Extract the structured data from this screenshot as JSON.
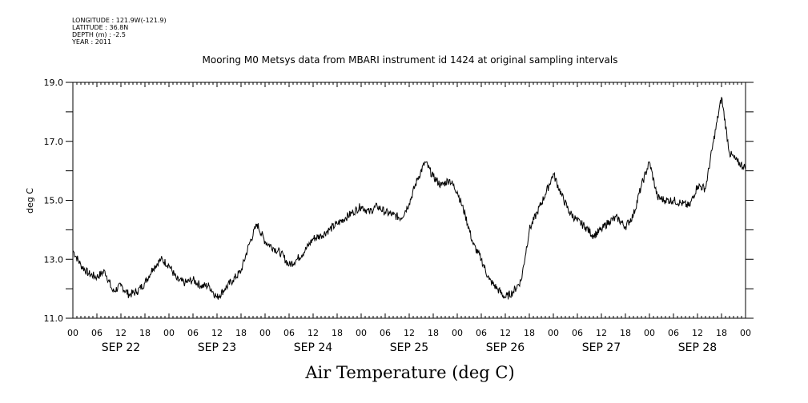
{
  "header": {
    "longitude": "LONGITUDE : 121.9W(-121.9)",
    "latitude": "LATITUDE : 36.8N",
    "depth": "DEPTH (m) : -2.5",
    "year": "YEAR : 2011"
  },
  "chart_data": {
    "type": "line",
    "title": "Mooring M0 Metsys data from MBARI instrument id 1424 at original sampling intervals",
    "xlabel": "Air Temperature (deg C)",
    "ylabel": "deg C",
    "ylim": [
      11.0,
      19.0
    ],
    "yticks": [
      "11.0",
      "13.0",
      "15.0",
      "17.0",
      "19.0"
    ],
    "xlim_hours": [
      0,
      168
    ],
    "hour_tick_labels": [
      "00",
      "06",
      "12",
      "18",
      "00",
      "06",
      "12",
      "18",
      "00",
      "06",
      "12",
      "18",
      "00",
      "06",
      "12",
      "18",
      "00",
      "06",
      "12",
      "18",
      "00",
      "06",
      "12",
      "18",
      "00",
      "06",
      "12",
      "18",
      "00"
    ],
    "day_labels": [
      "SEP 22",
      "SEP 23",
      "SEP 24",
      "SEP 25",
      "SEP 26",
      "SEP 27",
      "SEP 28"
    ],
    "grid": false,
    "series": [
      {
        "x": [
          "SEP 22 00:00",
          "SEP 22 02:00",
          "SEP 22 04:00",
          "SEP 22 06:00",
          "SEP 22 08:00",
          "SEP 22 10:00",
          "SEP 22 12:00",
          "SEP 22 14:00",
          "SEP 22 16:00",
          "SEP 22 18:00",
          "SEP 22 20:00",
          "SEP 22 22:00",
          "SEP 23 00:00",
          "SEP 23 02:00",
          "SEP 23 04:00",
          "SEP 23 06:00",
          "SEP 23 08:00",
          "SEP 23 10:00",
          "SEP 23 12:00",
          "SEP 23 14:00",
          "SEP 23 16:00",
          "SEP 23 18:00",
          "SEP 23 20:00",
          "SEP 23 22:00",
          "SEP 24 00:00",
          "SEP 24 02:00",
          "SEP 24 04:00",
          "SEP 24 06:00",
          "SEP 24 08:00",
          "SEP 24 10:00",
          "SEP 24 12:00",
          "SEP 24 14:00",
          "SEP 24 16:00",
          "SEP 24 18:00",
          "SEP 24 20:00",
          "SEP 24 22:00",
          "SEP 25 00:00",
          "SEP 25 02:00",
          "SEP 25 04:00",
          "SEP 25 06:00",
          "SEP 25 08:00",
          "SEP 25 10:00",
          "SEP 25 12:00",
          "SEP 25 14:00",
          "SEP 25 16:00",
          "SEP 25 18:00",
          "SEP 25 20:00",
          "SEP 25 22:00",
          "SEP 26 00:00",
          "SEP 26 02:00",
          "SEP 26 04:00",
          "SEP 26 06:00",
          "SEP 26 08:00",
          "SEP 26 10:00",
          "SEP 26 12:00",
          "SEP 26 14:00",
          "SEP 26 16:00",
          "SEP 26 18:00",
          "SEP 26 20:00",
          "SEP 26 22:00",
          "SEP 27 00:00",
          "SEP 27 02:00",
          "SEP 27 04:00",
          "SEP 27 06:00",
          "SEP 27 08:00",
          "SEP 27 10:00",
          "SEP 27 12:00",
          "SEP 27 14:00",
          "SEP 27 16:00",
          "SEP 27 18:00",
          "SEP 27 20:00",
          "SEP 27 22:00",
          "SEP 28 00:00",
          "SEP 28 02:00",
          "SEP 28 04:00",
          "SEP 28 06:00",
          "SEP 28 08:00",
          "SEP 28 10:00",
          "SEP 28 12:00",
          "SEP 28 14:00",
          "SEP 28 16:00",
          "SEP 28 18:00",
          "SEP 28 20:00",
          "SEP 28 22:00",
          "SEP 29 00:00"
        ],
        "y": [
          13.3,
          12.8,
          12.5,
          12.4,
          12.6,
          11.9,
          12.1,
          11.8,
          11.9,
          12.2,
          12.7,
          13.0,
          12.8,
          12.3,
          12.2,
          12.3,
          12.1,
          12.1,
          11.7,
          12.0,
          12.3,
          12.6,
          13.5,
          14.2,
          13.6,
          13.4,
          13.2,
          12.8,
          13.0,
          13.3,
          13.7,
          13.8,
          14.0,
          14.2,
          14.4,
          14.6,
          14.8,
          14.6,
          14.8,
          14.6,
          14.5,
          14.4,
          14.9,
          15.7,
          16.3,
          15.8,
          15.5,
          15.7,
          15.3,
          14.5,
          13.5,
          13.0,
          12.3,
          12.0,
          11.7,
          11.9,
          12.3,
          14.0,
          14.6,
          15.2,
          15.9,
          15.2,
          14.6,
          14.3,
          14.1,
          13.8,
          14.0,
          14.3,
          14.4,
          14.1,
          14.5,
          15.5,
          16.3,
          15.1,
          15.0,
          15.0,
          14.9,
          14.8,
          15.5,
          15.4,
          17.0,
          18.5,
          16.6,
          16.3,
          16.1
        ]
      }
    ]
  }
}
